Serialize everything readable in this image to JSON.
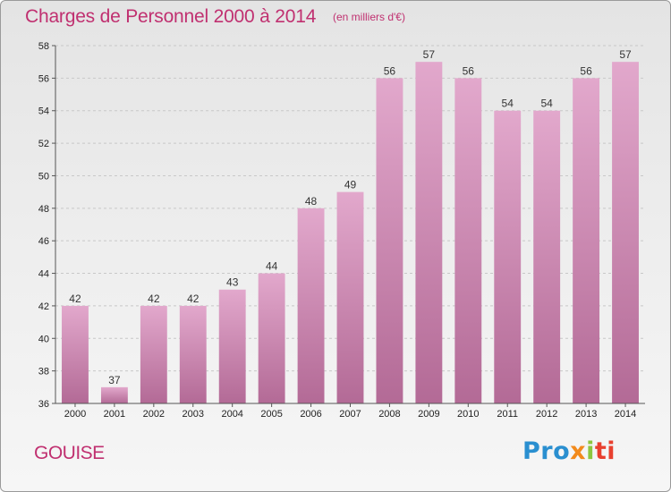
{
  "chart_data": {
    "type": "bar",
    "title": "Charges de Personnel 2000 à 2014",
    "subtitle": "(en milliers d'€)",
    "categories": [
      "2000",
      "2001",
      "2002",
      "2003",
      "2004",
      "2005",
      "2006",
      "2007",
      "2008",
      "2009",
      "2010",
      "2011",
      "2012",
      "2013",
      "2014"
    ],
    "values": [
      42,
      37,
      42,
      42,
      43,
      44,
      48,
      49,
      56,
      57,
      56,
      54,
      54,
      56,
      57
    ],
    "ylim": [
      36,
      58
    ],
    "yticks": [
      36,
      38,
      40,
      42,
      44,
      46,
      48,
      50,
      52,
      54,
      56,
      58
    ],
    "xlabel": "",
    "ylabel": "",
    "grid": true,
    "bar_color_top": "#e2a8cc",
    "bar_color_bottom": "#b36a96"
  },
  "footer": {
    "place": "GOUISE",
    "logo_parts": [
      "Pro",
      "x",
      "i",
      "ti"
    ]
  },
  "colors": {
    "title": "#c03070"
  }
}
